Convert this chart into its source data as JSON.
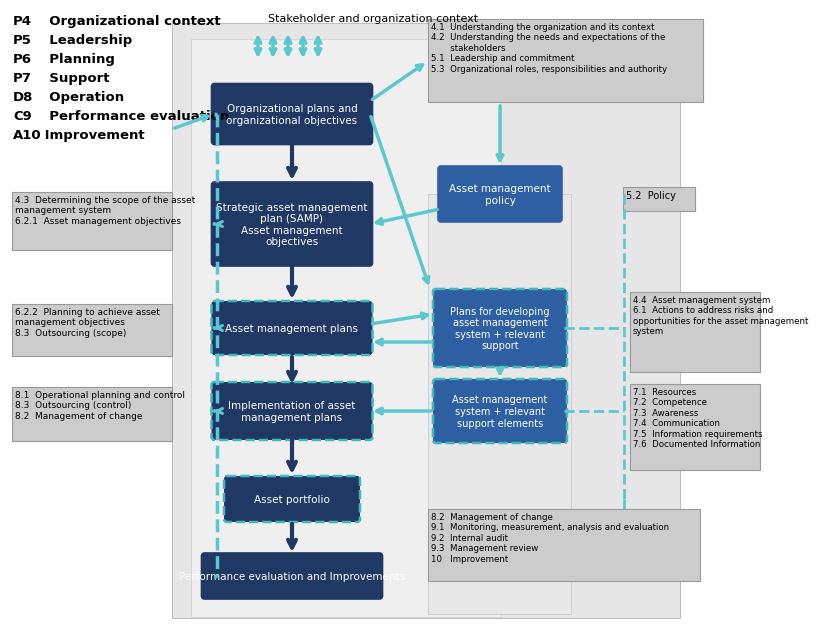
{
  "bg_color": "#ffffff",
  "dark_blue": "#1F3864",
  "medium_blue": "#2E5FA3",
  "cyan": "#5BC8D0",
  "gray_fc": "#CCCCCC",
  "gray_ec": "#999999",
  "left_labels": [
    [
      "P4",
      "  Organizational context"
    ],
    [
      "P5",
      "  Leadership"
    ],
    [
      "P6",
      "  Planning"
    ],
    [
      "P7",
      "  Support"
    ],
    [
      "D8",
      "  Operation"
    ],
    [
      "C9",
      "  Performance evaluation"
    ],
    [
      "A10",
      " Improvement"
    ]
  ],
  "top_label": "Stakeholder and organization context",
  "top_right_text": "4.1  Understanding the organization and its context\n4.2  Understanding the needs and expectations of the\n       stakeholders\n5.1  Leadership and commitment\n5.3  Organizational roles, responsibilities and authority",
  "policy_label": "5.2  Policy",
  "left_box1_text": "4.3  Determining the scope of the asset\nmanagement system\n6.2.1  Asset management objectives",
  "left_box2_text": "6.2.2  Planning to achieve asset\nmanagement objectives\n8.3  Outsourcing (scope)",
  "left_box3_text": "8.1  Operational planning and control\n8.3  Outsourcing (control)\n8.2  Management of change",
  "right_text1": "4.4  Asset management system\n6.1  Actions to address risks and\nopportunities for the asset management\nsystem",
  "right_text2": "7.1  Resources\n7.2  Competence\n7.3  Awareness\n7.4  Communication\n7.5  Information requirements\n7.6  Documented Information",
  "bottom_right_text": "8.2  Management of change\n9.1  Monitoring, measurement, analysis and evaluation\n9.2  Internal audit\n9.3  Management review\n10   Improvement"
}
